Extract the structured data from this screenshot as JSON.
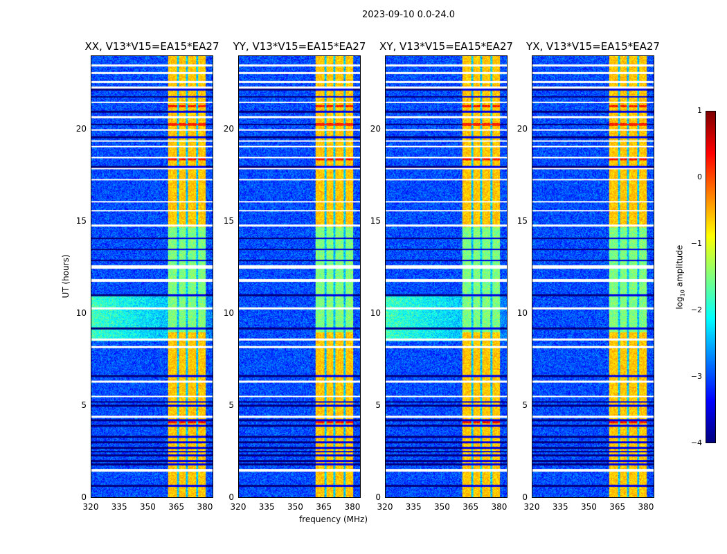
{
  "chart_data": {
    "type": "heatmap",
    "title": "2023-09-10 0.0-24.0",
    "xlabel": "frequency (MHz)",
    "ylabel": "UT (hours)",
    "xlim": [
      320,
      384.4
    ],
    "ylim": [
      0,
      24
    ],
    "xticks": [
      "320",
      "335",
      "350",
      "365",
      "380"
    ],
    "yticks": [
      "0",
      "5",
      "10",
      "15",
      "20"
    ],
    "panels": [
      {
        "title": "XX, V13*V15=EA15*EA27",
        "bg_boost": true,
        "band_shift": 0
      },
      {
        "title": "YY, V13*V15=EA15*EA27",
        "bg_boost": false,
        "band_shift": 0
      },
      {
        "title": "XY, V13*V15=EA15*EA27",
        "bg_boost": true,
        "band_shift": 0
      },
      {
        "title": "YX, V13*V15=EA15*EA27",
        "bg_boost": false,
        "band_shift": 0
      }
    ],
    "band_mhz": [
      360.7,
      380.4
    ],
    "band_dividers_mhz": [
      365.8,
      370.5,
      376.0
    ],
    "background_log_amp": -3.0,
    "band_log_amp_high": -0.6,
    "band_log_amp_low": -1.5,
    "band_low_hours": [
      [
        9.0,
        14.7
      ]
    ],
    "blanked_hours": [
      1.45,
      1.5,
      4.4,
      5.5,
      6.3,
      8.2,
      8.6,
      10.3,
      11.8,
      11.85,
      12.5,
      12.6,
      14.8,
      15.6,
      16.1,
      17.3,
      17.9,
      18.5,
      19.1,
      19.4,
      20.0,
      20.7,
      21.5,
      22.3,
      22.6,
      23.1,
      23.5
    ],
    "zero_hours": [
      0.65,
      1.8,
      2.0,
      2.3,
      2.5,
      2.7,
      3.0,
      3.3,
      3.9,
      4.2,
      5.0,
      5.2,
      6.6,
      9.2,
      11.0,
      12.9,
      13.5,
      14.1,
      18.0,
      19.6,
      20.3,
      21.0,
      21.8,
      22.2
    ],
    "hot_hours": [
      4.1,
      18.4,
      20.3,
      21.3,
      22.3
    ],
    "colorbar": {
      "label": "log10 amplitude",
      "label_main": "log",
      "label_sub": "10",
      "label_rest": " amplitude",
      "range": [
        -4,
        1
      ],
      "ticks": [
        "1",
        "0",
        "−1",
        "−2",
        "−3",
        "−4"
      ]
    }
  }
}
